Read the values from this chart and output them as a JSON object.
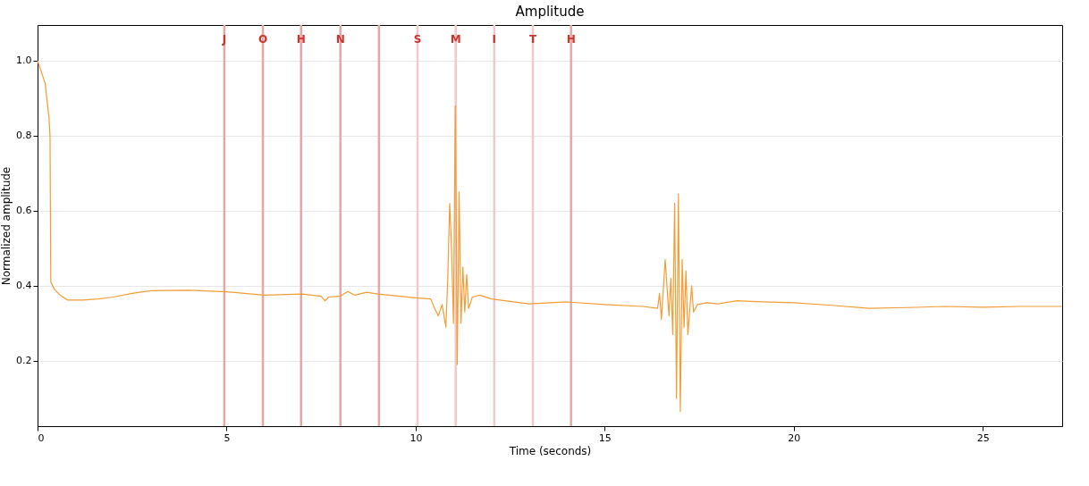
{
  "chart_data": {
    "type": "line",
    "title": "Amplitude",
    "xlabel": "Time (seconds)",
    "ylabel": "Normalized amplitude",
    "x": [
      0,
      0.1,
      0.2,
      0.3,
      0.33,
      0.35,
      0.45,
      0.6,
      0.8,
      1.2,
      1.6,
      2.0,
      2.5,
      3.0,
      4.0,
      5.0,
      6.0,
      7.0,
      7.5,
      7.6,
      7.7,
      8.0,
      8.2,
      8.4,
      8.7,
      9.0,
      10.0,
      10.4,
      10.5,
      10.6,
      10.7,
      10.8,
      10.85,
      10.9,
      10.95,
      11.0,
      11.05,
      11.1,
      11.15,
      11.2,
      11.25,
      11.3,
      11.35,
      11.4,
      11.5,
      11.7,
      12,
      13,
      14,
      15,
      16,
      16.4,
      16.45,
      16.5,
      16.6,
      16.7,
      16.75,
      16.8,
      16.85,
      16.9,
      16.95,
      17.0,
      17.05,
      17.1,
      17.15,
      17.2,
      17.3,
      17.35,
      17.45,
      17.7,
      18,
      18.5,
      19,
      20,
      21,
      22,
      23,
      24,
      25,
      26,
      27.1
    ],
    "series": [
      {
        "color": "#f39c34",
        "values": [
          1.0,
          0.97,
          0.94,
          0.85,
          0.8,
          0.41,
          0.39,
          0.375,
          0.362,
          0.362,
          0.365,
          0.37,
          0.38,
          0.387,
          0.388,
          0.384,
          0.375,
          0.378,
          0.372,
          0.36,
          0.37,
          0.372,
          0.385,
          0.375,
          0.383,
          0.378,
          0.368,
          0.365,
          0.34,
          0.32,
          0.35,
          0.29,
          0.42,
          0.62,
          0.5,
          0.3,
          0.88,
          0.19,
          0.65,
          0.3,
          0.45,
          0.33,
          0.43,
          0.34,
          0.37,
          0.375,
          0.365,
          0.352,
          0.357,
          0.35,
          0.345,
          0.34,
          0.38,
          0.31,
          0.47,
          0.32,
          0.42,
          0.27,
          0.62,
          0.1,
          0.645,
          0.065,
          0.47,
          0.29,
          0.44,
          0.27,
          0.4,
          0.33,
          0.35,
          0.355,
          0.352,
          0.36,
          0.358,
          0.355,
          0.348,
          0.34,
          0.342,
          0.345,
          0.343,
          0.345,
          0.345
        ]
      }
    ],
    "xlim": [
      0,
      27.1
    ],
    "xticks": [
      0,
      5,
      10,
      15,
      20,
      25
    ],
    "ylim": [
      0.026,
      1.095
    ],
    "yticks": [
      0.2,
      0.4,
      0.6,
      0.8,
      {
        "value": 1,
        "label": "1.0"
      }
    ],
    "grid": "y",
    "ref_lines": [
      {
        "axis": "x",
        "value": 4.94,
        "label": "J",
        "color": "#e6a6a6"
      },
      {
        "axis": "x",
        "value": 5.96,
        "label": "O",
        "color": "#e6a6a6"
      },
      {
        "axis": "x",
        "value": 6.97,
        "label": "H",
        "color": "#e6a6a6"
      },
      {
        "axis": "x",
        "value": 8.01,
        "label": "N",
        "color": "#e6a6a6"
      },
      {
        "axis": "x",
        "value": 9.03,
        "color": "#e6a6a6"
      },
      {
        "axis": "x",
        "value": 10.05,
        "label": "S",
        "color": "#f2c8c8"
      },
      {
        "axis": "x",
        "value": 11.06,
        "label": "M",
        "color": "#f2c8c8"
      },
      {
        "axis": "x",
        "value": 12.08,
        "label": "I",
        "color": "#f2c8c8"
      },
      {
        "axis": "x",
        "value": 13.1,
        "label": "T",
        "color": "#f2c8c8"
      },
      {
        "axis": "x",
        "value": 14.11,
        "label": "H",
        "color": "#e6a6a6"
      }
    ]
  }
}
